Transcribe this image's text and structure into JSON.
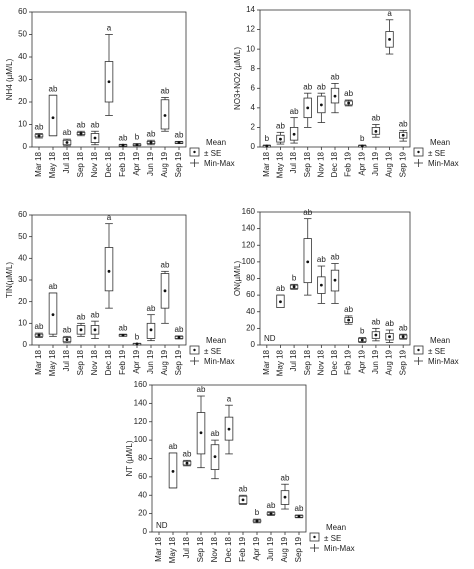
{
  "chart_data": [
    {
      "type": "box",
      "y_label": "NH4 (µM/L)",
      "categories": [
        "Mar 18",
        "May 18",
        "Jul 18",
        "Sep 18",
        "Nov 18",
        "Dec 18",
        "Feb 19",
        "Apr 19",
        "Jun 19",
        "Aug 19",
        "Sep 19"
      ],
      "ylim": [
        0,
        60
      ],
      "yticks": [
        0,
        10,
        20,
        30,
        40,
        50,
        60
      ],
      "boxes": [
        {
          "mean": 5,
          "box_low": 4.5,
          "box_high": 5.5,
          "min": 4,
          "max": 6,
          "label": "ab"
        },
        {
          "mean": 13,
          "box_low": 5,
          "box_high": 23,
          "min": 5,
          "max": 23,
          "label": "ab"
        },
        {
          "mean": 2,
          "box_low": 1,
          "box_high": 3,
          "min": 0.5,
          "max": 3.5,
          "label": "ab"
        },
        {
          "mean": 6,
          "box_low": 5.5,
          "box_high": 6.5,
          "min": 5,
          "max": 7,
          "label": "ab"
        },
        {
          "mean": 4,
          "box_low": 2,
          "box_high": 6,
          "min": 1,
          "max": 7,
          "label": "ab"
        },
        {
          "mean": 29,
          "box_low": 20,
          "box_high": 38,
          "min": 14,
          "max": 50,
          "label": "a"
        },
        {
          "mean": 0.8,
          "box_low": 0.5,
          "box_high": 1,
          "min": 0.3,
          "max": 1.2,
          "label": "ab"
        },
        {
          "mean": 1,
          "box_low": 0.7,
          "box_high": 1.3,
          "min": 0.5,
          "max": 1.5,
          "label": "b"
        },
        {
          "mean": 2,
          "box_low": 1.5,
          "box_high": 2.5,
          "min": 1,
          "max": 3,
          "label": "ab"
        },
        {
          "mean": 14,
          "box_low": 8,
          "box_high": 21,
          "min": 7,
          "max": 22,
          "label": "ab"
        },
        {
          "mean": 2,
          "box_low": 1.7,
          "box_high": 2.3,
          "min": 1.5,
          "max": 2.5,
          "label": "ab"
        }
      ],
      "legend": [
        "Mean",
        "± SE",
        "Min-Max"
      ]
    },
    {
      "type": "box",
      "y_label": "NO3+NO2 (µM/L)",
      "categories": [
        "Mar 18",
        "May 18",
        "Jul 18",
        "Sep 18",
        "Nov 18",
        "Dec 18",
        "Feb 19",
        "Apr 19",
        "Jun 19",
        "Aug 19",
        "Sep 19"
      ],
      "ylim": [
        0,
        14
      ],
      "yticks": [
        0,
        2,
        4,
        6,
        8,
        10,
        12,
        14
      ],
      "boxes": [
        {
          "mean": 0.1,
          "box_low": 0.05,
          "box_high": 0.15,
          "min": 0,
          "max": 0.2,
          "label": "b"
        },
        {
          "mean": 0.8,
          "box_low": 0.5,
          "box_high": 1.2,
          "min": 0.3,
          "max": 1.5,
          "label": "ab"
        },
        {
          "mean": 1.3,
          "box_low": 0.7,
          "box_high": 2,
          "min": 0.4,
          "max": 3,
          "label": "ab"
        },
        {
          "mean": 4,
          "box_low": 3,
          "box_high": 5,
          "min": 2,
          "max": 5.5,
          "label": "ab"
        },
        {
          "mean": 4.3,
          "box_low": 3.5,
          "box_high": 5.2,
          "min": 2.5,
          "max": 5.5,
          "label": "ab"
        },
        {
          "mean": 5.2,
          "box_low": 4.5,
          "box_high": 6,
          "min": 3.5,
          "max": 6.5,
          "label": "ab"
        },
        {
          "mean": 4.5,
          "box_low": 4.3,
          "box_high": 4.7,
          "min": 4.2,
          "max": 4.8,
          "label": "ab"
        },
        {
          "mean": 0.1,
          "box_low": 0.05,
          "box_high": 0.15,
          "min": 0,
          "max": 0.2,
          "label": "b"
        },
        {
          "mean": 1.6,
          "box_low": 1.3,
          "box_high": 2,
          "min": 1,
          "max": 2.3,
          "label": "ab"
        },
        {
          "mean": 11,
          "box_low": 10.2,
          "box_high": 11.8,
          "min": 9.5,
          "max": 13,
          "label": "a"
        },
        {
          "mean": 1.2,
          "box_low": 0.9,
          "box_high": 1.5,
          "min": 0.6,
          "max": 1.7,
          "label": "ab"
        }
      ],
      "legend": [
        "Mean",
        "± SE",
        "Min-Max"
      ]
    },
    {
      "type": "box",
      "y_label": "TIN(µM/L)",
      "categories": [
        "Mar 18",
        "May 18",
        "Jul 18",
        "Sep 18",
        "Nov 18",
        "Dec 18",
        "Feb 19",
        "Apr 19",
        "Jun 19",
        "Aug 19",
        "Sep 19"
      ],
      "ylim": [
        0,
        60
      ],
      "yticks": [
        0,
        10,
        20,
        30,
        40,
        50,
        60
      ],
      "boxes": [
        {
          "mean": 4.5,
          "box_low": 4,
          "box_high": 5,
          "min": 3.5,
          "max": 5.5,
          "label": "ab"
        },
        {
          "mean": 14,
          "box_low": 5,
          "box_high": 24,
          "min": 4,
          "max": 24,
          "label": "ab"
        },
        {
          "mean": 2.5,
          "box_low": 1.5,
          "box_high": 3.5,
          "min": 1,
          "max": 4,
          "label": "ab"
        },
        {
          "mean": 7,
          "box_low": 5,
          "box_high": 9,
          "min": 4,
          "max": 10,
          "label": "ab"
        },
        {
          "mean": 7,
          "box_low": 5,
          "box_high": 9,
          "min": 3,
          "max": 11,
          "label": "ab"
        },
        {
          "mean": 34,
          "box_low": 25,
          "box_high": 45,
          "min": 17,
          "max": 56,
          "label": "a"
        },
        {
          "mean": 4.5,
          "box_low": 4.2,
          "box_high": 4.8,
          "min": 4,
          "max": 5,
          "label": "ab"
        },
        {
          "mean": 0.5,
          "box_low": 0.3,
          "box_high": 0.7,
          "min": 0.2,
          "max": 0.8,
          "label": "b"
        },
        {
          "mean": 7,
          "box_low": 3,
          "box_high": 10,
          "min": 2,
          "max": 14,
          "label": "ab"
        },
        {
          "mean": 25,
          "box_low": 17,
          "box_high": 33,
          "min": 10,
          "max": 34,
          "label": "ab"
        },
        {
          "mean": 3.5,
          "box_low": 3,
          "box_high": 4,
          "min": 2.8,
          "max": 4.2,
          "label": "ab"
        }
      ],
      "legend": [
        "Mean",
        "± SE",
        "Min-Max"
      ]
    },
    {
      "type": "box",
      "y_label": "ON(µM/L)",
      "annotation": "ND",
      "categories": [
        "Mar 18",
        "May 18",
        "Jul 18",
        "Sep 18",
        "Nov 18",
        "Dec 18",
        "Feb 19",
        "Apr 19",
        "Jun 19",
        "Aug 19",
        "Sep 19"
      ],
      "ylim": [
        0,
        160
      ],
      "yticks": [
        0,
        20,
        40,
        60,
        80,
        100,
        120,
        140,
        160
      ],
      "boxes": [
        null,
        {
          "mean": 52,
          "box_low": 45,
          "box_high": 60,
          "min": 45,
          "max": 60,
          "label": "ab"
        },
        {
          "mean": 70,
          "box_low": 68,
          "box_high": 72,
          "min": 67,
          "max": 73,
          "label": "b"
        },
        {
          "mean": 100,
          "box_low": 75,
          "box_high": 128,
          "min": 60,
          "max": 152,
          "label": "ab"
        },
        {
          "mean": 72,
          "box_low": 62,
          "box_high": 82,
          "min": 50,
          "max": 95,
          "label": "ab"
        },
        {
          "mean": 78,
          "box_low": 65,
          "box_high": 90,
          "min": 50,
          "max": 98,
          "label": "ab"
        },
        {
          "mean": 30,
          "box_low": 27,
          "box_high": 33,
          "min": 25,
          "max": 35,
          "label": "ab"
        },
        {
          "mean": 6,
          "box_low": 4,
          "box_high": 8,
          "min": 3,
          "max": 9,
          "label": "b"
        },
        {
          "mean": 12,
          "box_low": 8,
          "box_high": 16,
          "min": 5,
          "max": 20,
          "label": "ab"
        },
        {
          "mean": 10,
          "box_low": 6,
          "box_high": 14,
          "min": 3,
          "max": 18,
          "label": "ab"
        },
        {
          "mean": 10,
          "box_low": 8,
          "box_high": 12,
          "min": 7,
          "max": 13,
          "label": "ab"
        }
      ],
      "legend": [
        "Mean",
        "± SE",
        "Min-Max"
      ]
    },
    {
      "type": "box",
      "y_label": "NT (µM/L)",
      "annotation": "ND",
      "categories": [
        "Mar 18",
        "May 18",
        "Jul 18",
        "Sep 18",
        "Nov 18",
        "Dec 18",
        "Feb 19",
        "Apr 19",
        "Jun 19",
        "Aug 19",
        "Sep 19"
      ],
      "ylim": [
        0,
        160
      ],
      "yticks": [
        0,
        20,
        40,
        60,
        80,
        100,
        120,
        140,
        160
      ],
      "boxes": [
        null,
        {
          "mean": 66,
          "box_low": 48,
          "box_high": 86,
          "min": 48,
          "max": 86,
          "label": "ab"
        },
        {
          "mean": 75,
          "box_low": 73,
          "box_high": 77,
          "min": 72,
          "max": 78,
          "label": "ab"
        },
        {
          "mean": 108,
          "box_low": 85,
          "box_high": 130,
          "min": 70,
          "max": 148,
          "label": "ab"
        },
        {
          "mean": 82,
          "box_low": 68,
          "box_high": 95,
          "min": 58,
          "max": 100,
          "label": "ab"
        },
        {
          "mean": 112,
          "box_low": 100,
          "box_high": 125,
          "min": 85,
          "max": 138,
          "label": "a"
        },
        {
          "mean": 35,
          "box_low": 31,
          "box_high": 39,
          "min": 30,
          "max": 40,
          "label": "ab"
        },
        {
          "mean": 12,
          "box_low": 11,
          "box_high": 13,
          "min": 10,
          "max": 14,
          "label": "b"
        },
        {
          "mean": 20,
          "box_low": 19,
          "box_high": 21,
          "min": 18,
          "max": 22,
          "label": "ab"
        },
        {
          "mean": 38,
          "box_low": 30,
          "box_high": 45,
          "min": 25,
          "max": 52,
          "label": "ab"
        },
        {
          "mean": 17,
          "box_low": 16,
          "box_high": 18,
          "min": 15.5,
          "max": 18.5,
          "label": "ab"
        }
      ],
      "legend": [
        "Mean",
        "± SE",
        "Min-Max"
      ]
    }
  ]
}
